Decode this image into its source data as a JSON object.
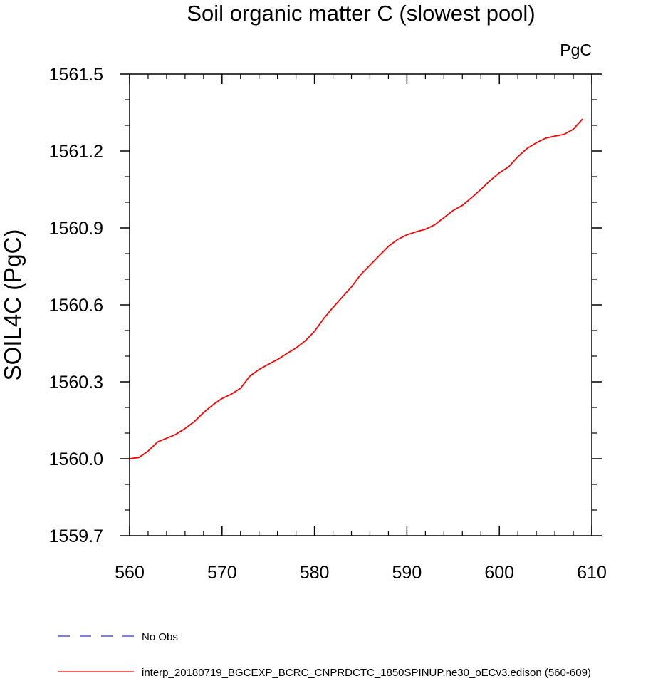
{
  "chart_data": {
    "type": "line",
    "title": "Soil organic matter C (slowest pool)",
    "units": "PgC",
    "xlabel": "",
    "ylabel": "SOIL4C  (PgC)",
    "xlim": [
      560,
      610
    ],
    "ylim": [
      1559.7,
      1561.5
    ],
    "x_ticks": [
      560,
      570,
      580,
      590,
      600,
      610
    ],
    "x_tick_labels": [
      "560",
      "570",
      "580",
      "590",
      "600",
      "610"
    ],
    "y_ticks": [
      1559.7,
      1560.0,
      1560.3,
      1560.6,
      1560.9,
      1561.2,
      1561.5
    ],
    "y_tick_labels": [
      "1559.7",
      "1560.0",
      "1560.3",
      "1560.6",
      "1560.9",
      "1561.2",
      "1561.5"
    ],
    "series": [
      {
        "name": "interp_20180719_BGCEXP_BCRC_CNPRDCTC_1850SPINUP.ne30_oECv3.edison (560-609)",
        "color": "#ff0000",
        "dash": "solid",
        "x": [
          560,
          561,
          562,
          563,
          564,
          565,
          566,
          567,
          568,
          569,
          570,
          571,
          572,
          573,
          574,
          575,
          576,
          577,
          578,
          579,
          580,
          581,
          582,
          583,
          584,
          585,
          586,
          587,
          588,
          589,
          590,
          591,
          592,
          593,
          594,
          595,
          596,
          597,
          598,
          599,
          600,
          601,
          602,
          603,
          604,
          605,
          606,
          607,
          608,
          609
        ],
        "values": [
          1560.0,
          1560.005,
          1560.03,
          1560.065,
          1560.08,
          1560.095,
          1560.118,
          1560.145,
          1560.18,
          1560.21,
          1560.235,
          1560.252,
          1560.275,
          1560.322,
          1560.348,
          1560.368,
          1560.387,
          1560.41,
          1560.432,
          1560.46,
          1560.497,
          1560.547,
          1560.59,
          1560.63,
          1560.67,
          1560.718,
          1560.755,
          1560.792,
          1560.828,
          1560.855,
          1560.873,
          1560.885,
          1560.895,
          1560.912,
          1560.94,
          1560.968,
          1560.988,
          1561.018,
          1561.05,
          1561.085,
          1561.115,
          1561.138,
          1561.178,
          1561.21,
          1561.232,
          1561.25,
          1561.258,
          1561.265,
          1561.285,
          1561.325
        ]
      }
    ],
    "legend": [
      {
        "label": "No Obs",
        "color": "#3333cc",
        "dash": "dashed"
      },
      {
        "label": "interp_20180719_BGCEXP_BCRC_CNPRDCTC_1850SPINUP.ne30_oECv3.edison (560-609)",
        "color": "#ff0000",
        "dash": "solid"
      }
    ],
    "legend_position": "bottom",
    "grid": false
  }
}
